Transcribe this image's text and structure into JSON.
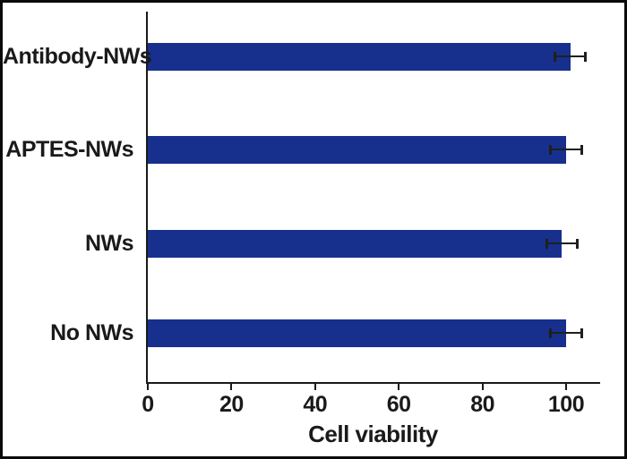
{
  "figure": {
    "background": "#ffffff",
    "border_color": "#0a0a0a"
  },
  "chart_data": {
    "type": "bar",
    "orientation": "horizontal",
    "title": "",
    "xlabel": "Cell viability",
    "ylabel": "",
    "categories": [
      "Antibody-NWs",
      "APTES-NWs",
      "NWs",
      "No NWs"
    ],
    "values": [
      101,
      100,
      99,
      100
    ],
    "errors": [
      4,
      4,
      4,
      4
    ],
    "x_ticks": [
      0,
      20,
      40,
      60,
      80,
      100
    ],
    "xlim": [
      0,
      108
    ],
    "grid": false,
    "legend": false,
    "bar_color": "#172f8d",
    "error_bar_color": "#1f1f1f",
    "axis_color": "#1a1a1a",
    "text_color": "#1a1a1a"
  }
}
